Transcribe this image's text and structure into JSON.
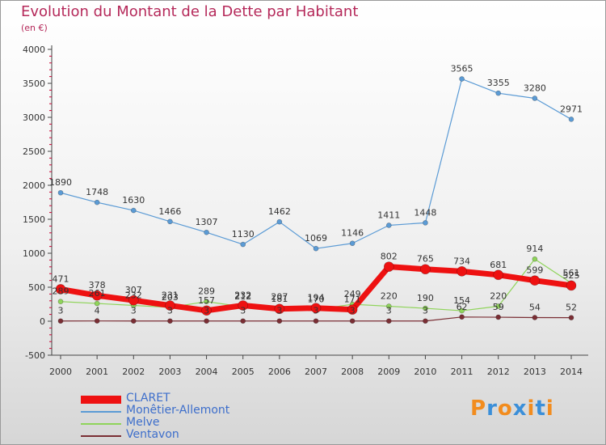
{
  "chart_data": {
    "type": "line",
    "title": "Evolution du Montant de la Dette par Habitant",
    "subtitle": "(en €)",
    "xlabel": "",
    "ylabel": "",
    "categories": [
      "2000",
      "2001",
      "2002",
      "2003",
      "2004",
      "2005",
      "2006",
      "2007",
      "2008",
      "2009",
      "2010",
      "2011",
      "2012",
      "2013",
      "2014"
    ],
    "ylim": [
      -500,
      4000
    ],
    "yticks": [
      -500,
      0,
      500,
      1000,
      1500,
      2000,
      2500,
      3000,
      3500,
      4000
    ],
    "grid": false,
    "legend_position": "bottom-left",
    "series": [
      {
        "name": "Monêtier-Allemont",
        "color": "#5b9bd5",
        "values": [
          1890,
          1748,
          1630,
          1466,
          1307,
          1130,
          1462,
          1069,
          1146,
          1411,
          1448,
          3565,
          3355,
          3280,
          2971
        ],
        "labels": [
          "1890",
          "1748",
          "1630",
          "1466",
          "1307",
          "1130",
          "1462",
          "1069",
          "1146",
          "1411",
          "1448",
          "3565",
          "3355",
          "3280",
          "2971"
        ]
      },
      {
        "name": "Melve",
        "color": "#8fd45a",
        "values": [
          289,
          261,
          232,
          203,
          289,
          212,
          207,
          170,
          249,
          220,
          190,
          154,
          220,
          914,
          561
        ],
        "labels": [
          "289",
          "261",
          "232",
          "203",
          "289",
          "212",
          "207",
          "170",
          "249",
          "220",
          "190",
          "154",
          "220",
          "914",
          "561"
        ]
      },
      {
        "name": "CLARET",
        "color": "#ee1111",
        "values": [
          471,
          378,
          307,
          231,
          157,
          232,
          181,
          194,
          171,
          802,
          765,
          734,
          681,
          599,
          525
        ],
        "labels": [
          "471",
          "378",
          "307",
          "231",
          "157",
          "232",
          "181",
          "194",
          "171",
          "802",
          "765",
          "734",
          "681",
          "599",
          "525"
        ]
      },
      {
        "name": "Ventavon",
        "color": "#7a2e34",
        "values": [
          3,
          4,
          3,
          3,
          3,
          3,
          3,
          3,
          3,
          3,
          3,
          62,
          59,
          54,
          52
        ],
        "labels": [
          "3",
          "4",
          "3",
          "3",
          "3",
          "3",
          "3",
          "3",
          "3",
          "3",
          "3",
          "62",
          "59",
          "54",
          "52"
        ]
      }
    ],
    "legend_order": [
      "CLARET",
      "Monêtier-Allemont",
      "Melve",
      "Ventavon"
    ]
  },
  "logo": {
    "text": "Proxiti",
    "letters": [
      "P",
      "r",
      "o",
      "x",
      "i",
      "t",
      "i"
    ],
    "colors": [
      "#f28c1e",
      "#3b8fd9",
      "#f28c1e",
      "#3b8fd9",
      "#f28c1e",
      "#3b8fd9",
      "#f28c1e"
    ]
  }
}
